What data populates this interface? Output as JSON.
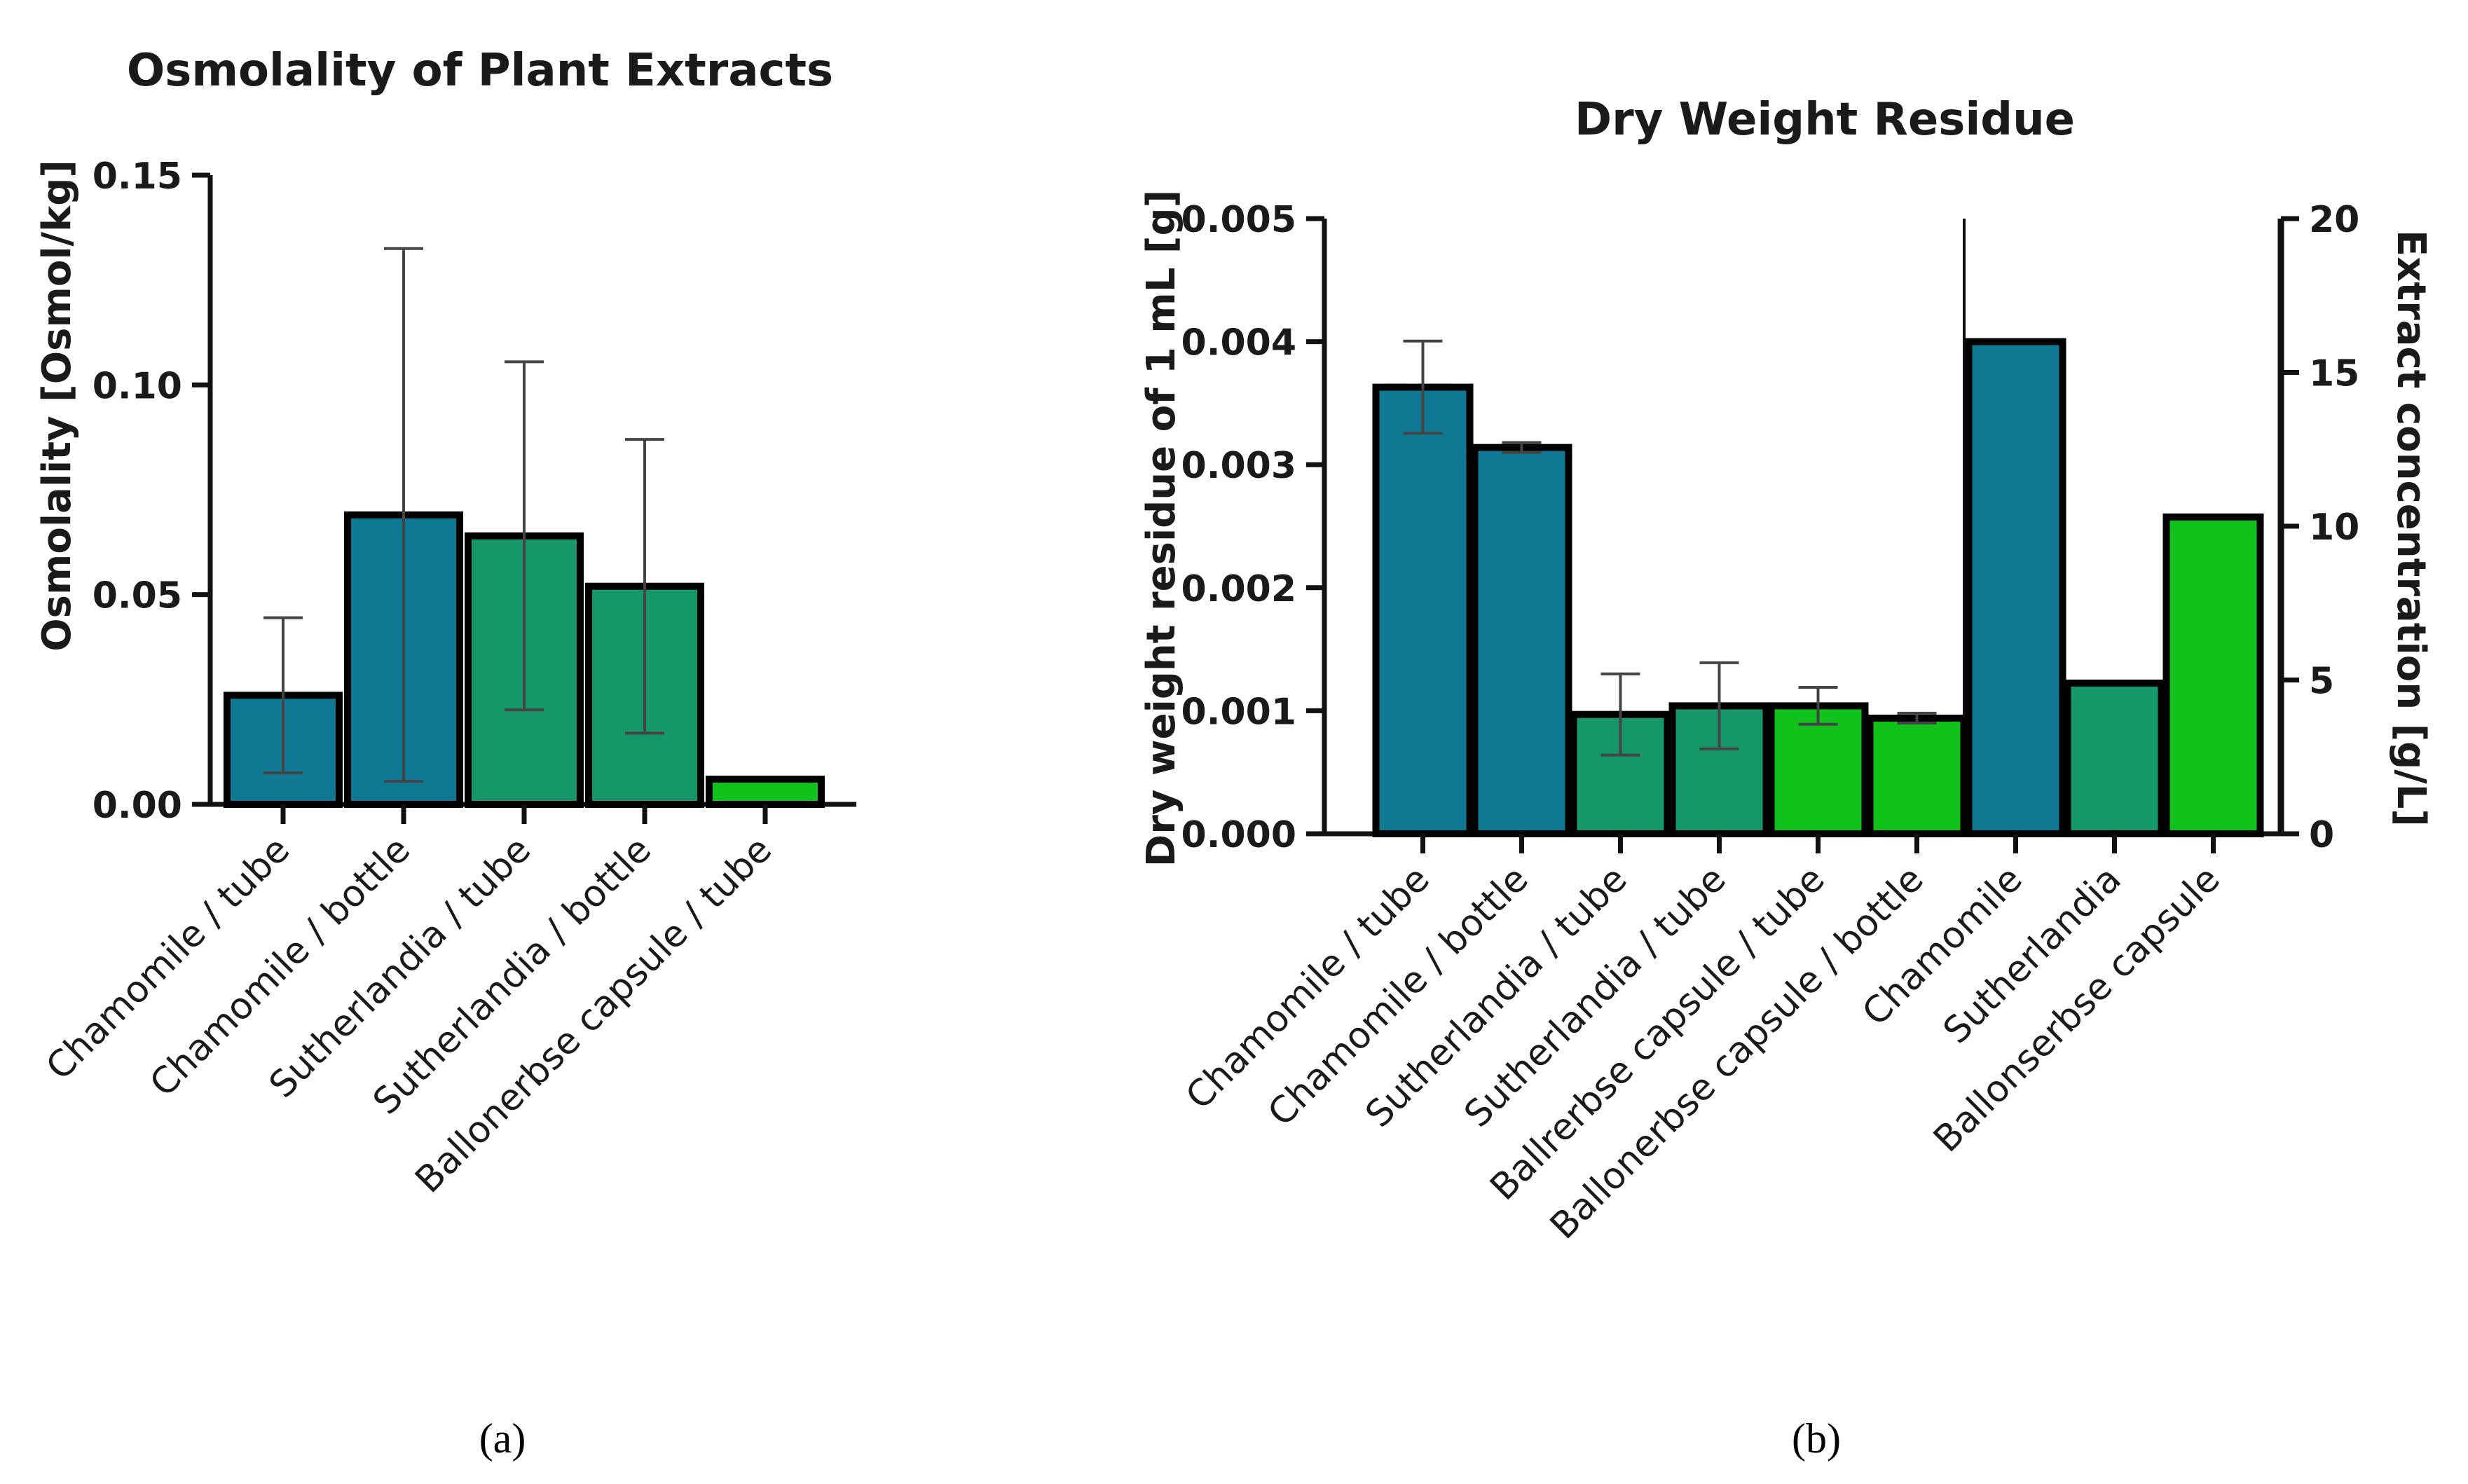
{
  "colors": {
    "chamomile": "#0f7893",
    "sutherlandia": "#15976a",
    "ballonerbse": "#11c21c",
    "axis": "#111111",
    "error_bar": "#444444"
  },
  "chart_data": [
    {
      "id": "a",
      "type": "bar",
      "title": "Osmolality of Plant Extracts",
      "ylabel": "Osmolality [Osmol/kg]",
      "xlabel": "",
      "ylim": [
        0,
        0.15
      ],
      "yticks": [
        0.0,
        0.05,
        0.1,
        0.15
      ],
      "ytick_labels": [
        "0.00",
        "0.05",
        "0.10",
        "0.15"
      ],
      "categories": [
        "Chamomile / tube",
        "Chamomile / bottle",
        "Sutherlandia / tube",
        "Sutherlandia / bottle",
        "Ballonerbse capsule / tube"
      ],
      "values": [
        0.026,
        0.069,
        0.064,
        0.052,
        0.006
      ],
      "errors": [
        0.0185,
        0.0635,
        0.0415,
        0.035,
        0
      ],
      "color_keys": [
        "chamomile",
        "chamomile",
        "sutherlandia",
        "sutherlandia",
        "ballonerbse"
      ],
      "panel_label": "(a)"
    },
    {
      "id": "b",
      "type": "bar",
      "title": "Dry Weight Residue",
      "ylabel": "Dry weight residue of 1 mL [g]",
      "y2label": "Extract concentration [g/L]",
      "xlabel": "",
      "ylim": [
        0,
        0.005
      ],
      "yticks": [
        0.0,
        0.001,
        0.002,
        0.003,
        0.004,
        0.005
      ],
      "ytick_labels": [
        "0.000",
        "0.001",
        "0.002",
        "0.003",
        "0.004",
        "0.005"
      ],
      "y2lim": [
        0,
        20
      ],
      "y2ticks": [
        0,
        5,
        10,
        15,
        20
      ],
      "y2tick_labels": [
        "0",
        "5",
        "10",
        "15",
        "20"
      ],
      "categories": [
        "Chamomile / tube",
        "Chamomile / bottle",
        "Sutherlandia / tube",
        "Sutherlandia / tube",
        "Ballrerbse capsule / tube",
        "Ballonerbse capsule / bottle",
        "Chamomile",
        "Sutherlandia",
        "Ballonserbse capsule"
      ],
      "values": [
        0.00363,
        0.00314,
        0.00097,
        0.00104,
        0.00104,
        0.00094,
        16.0,
        4.9,
        10.3
      ],
      "axis": [
        "left",
        "left",
        "left",
        "left",
        "left",
        "left",
        "right",
        "right",
        "right"
      ],
      "errors": [
        0.000375,
        4e-05,
        0.00033,
        0.00035,
        0.00015,
        4e-05,
        0,
        0,
        0
      ],
      "color_keys": [
        "chamomile",
        "chamomile",
        "sutherlandia",
        "sutherlandia",
        "ballonerbse",
        "ballonerbse",
        "chamomile",
        "sutherlandia",
        "ballonerbse"
      ],
      "panel_label": "(b)"
    }
  ]
}
